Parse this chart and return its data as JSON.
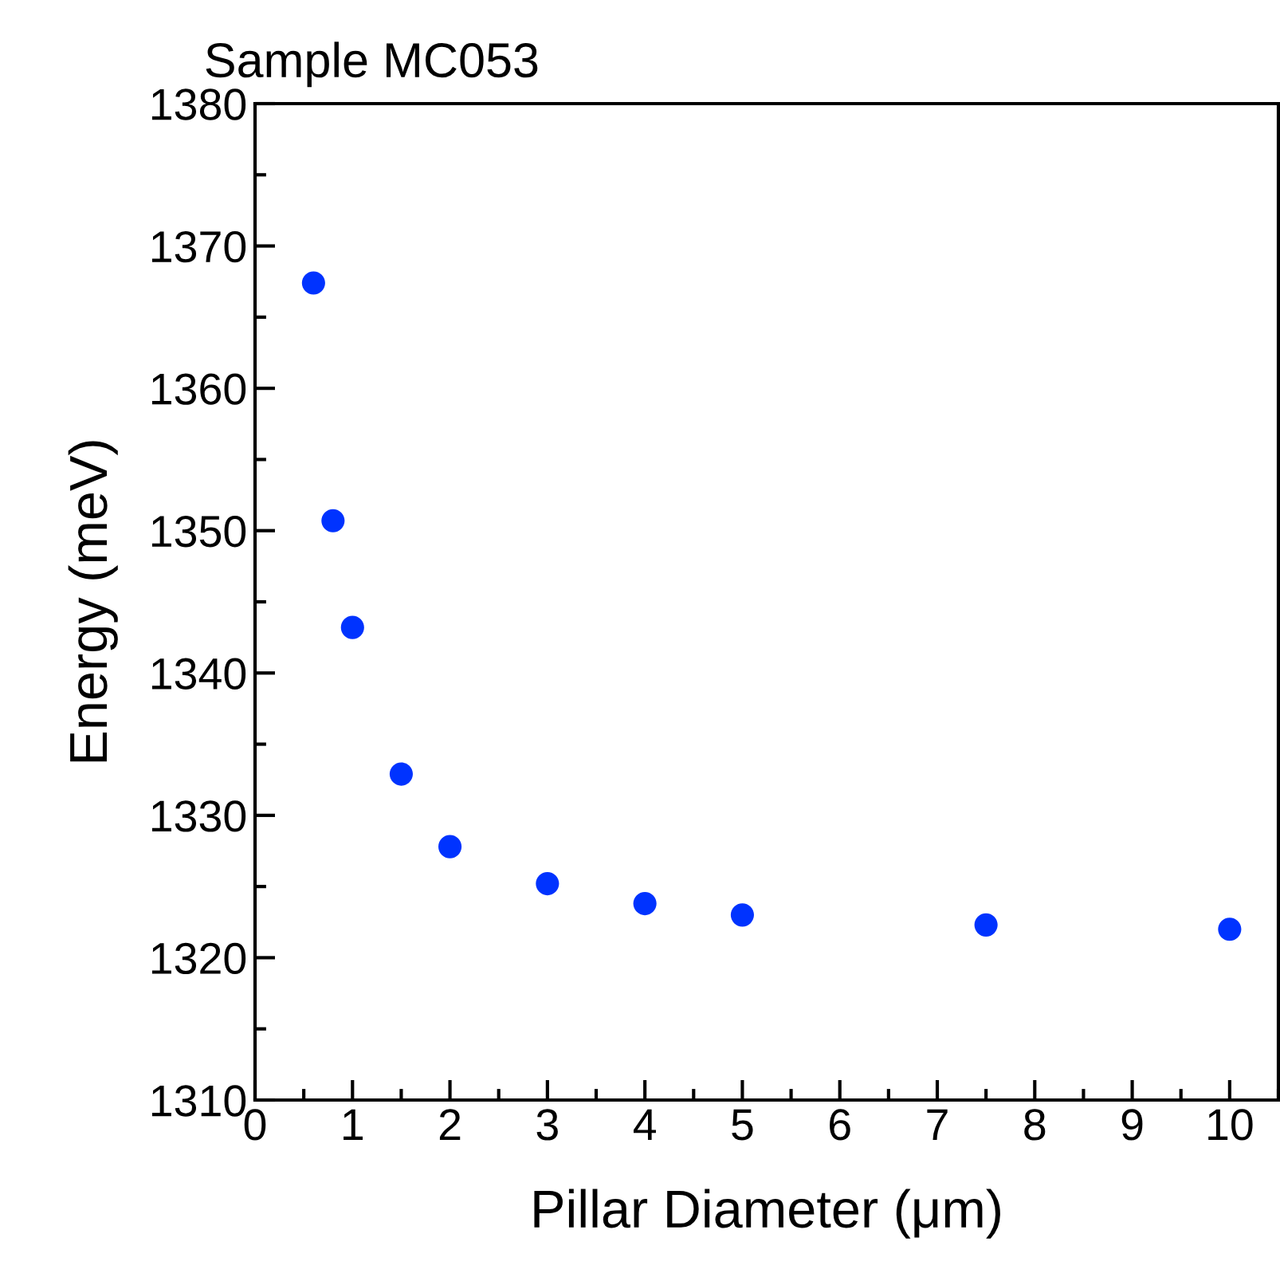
{
  "chart_data": {
    "type": "scatter",
    "title": "Sample MC053",
    "xlabel": "Pillar Diameter (μm)",
    "ylabel": "Energy (meV)",
    "x": [
      0.6,
      0.8,
      1.0,
      1.5,
      2,
      3,
      4,
      5,
      7.5,
      10
    ],
    "series": [
      {
        "color": "#0033ff",
        "values": [
          1367.4,
          1350.7,
          1343.2,
          1332.9,
          1327.8,
          1325.2,
          1323.8,
          1323.0,
          1322.3,
          1322.0
        ]
      }
    ],
    "xlim": [
      0,
      10.5
    ],
    "xticks": [
      0,
      1,
      2,
      3,
      4,
      5,
      6,
      7,
      8,
      9,
      10
    ],
    "ylim": [
      1310,
      1380
    ],
    "yticks": [
      1310,
      1320,
      1330,
      1340,
      1350,
      1360,
      1370,
      1380
    ],
    "marker": "circle",
    "grid": false,
    "legend": false
  }
}
